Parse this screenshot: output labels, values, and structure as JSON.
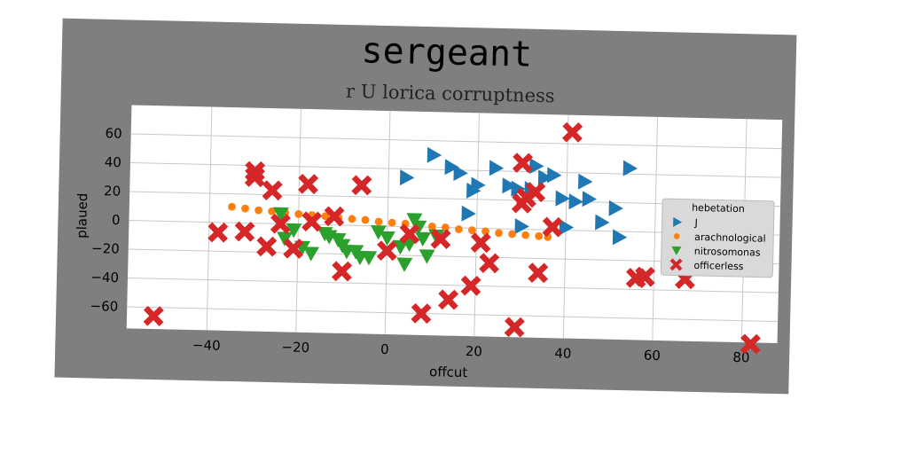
{
  "chart_data": {
    "type": "scatter",
    "title": "sergeant",
    "subtitle": "r U lorica corruptness",
    "xlabel": "offcut",
    "ylabel": "plaued",
    "xlim": [
      -58,
      88
    ],
    "ylim": [
      -75,
      80
    ],
    "xticks": [
      "−40",
      "−20",
      "0",
      "20",
      "40",
      "60",
      "80"
    ],
    "yticks": [
      "−60",
      "−40",
      "−20",
      "0",
      "20",
      "40",
      "60"
    ],
    "grid": true,
    "legend": {
      "title": "hebetation",
      "placement": "right"
    },
    "colors": {
      "figure_bg": "#7f7f7f",
      "plot_bg": "#ffffff",
      "grid": "#c8c8c8"
    },
    "series": [
      {
        "name": "J",
        "marker": "triangle-right",
        "color": "#1f77b4",
        "points": [
          [
            4,
            34
          ],
          [
            10,
            50
          ],
          [
            14,
            42
          ],
          [
            16,
            38
          ],
          [
            18,
            10
          ],
          [
            19,
            26
          ],
          [
            24,
            42
          ],
          [
            27,
            30
          ],
          [
            29,
            28
          ],
          [
            30,
            2
          ],
          [
            33,
            44
          ],
          [
            35,
            36
          ],
          [
            37,
            38
          ],
          [
            39,
            22
          ],
          [
            40,
            2
          ],
          [
            42,
            20
          ],
          [
            44,
            34
          ],
          [
            45,
            22
          ],
          [
            48,
            6
          ],
          [
            51,
            16
          ],
          [
            52,
            -4
          ],
          [
            54,
            44
          ],
          [
            20,
            30
          ],
          [
            32,
            28
          ]
        ]
      },
      {
        "name": "arachnological",
        "marker": "circle",
        "color": "#ff7f0e",
        "points": [
          [
            -35,
            11
          ],
          [
            -32,
            10
          ],
          [
            -29,
            9
          ],
          [
            -26,
            8.5
          ],
          [
            -23,
            8
          ],
          [
            -20,
            7
          ],
          [
            -17,
            6.5
          ],
          [
            -14,
            6
          ],
          [
            -11,
            5
          ],
          [
            -8,
            4.5
          ],
          [
            -5,
            4
          ],
          [
            -2,
            3
          ],
          [
            1,
            2.5
          ],
          [
            4,
            2
          ],
          [
            7,
            1
          ],
          [
            10,
            0.5
          ],
          [
            13,
            0
          ],
          [
            16,
            -1
          ],
          [
            19,
            -1.5
          ],
          [
            22,
            -2
          ],
          [
            25,
            -3
          ],
          [
            28,
            -3.5
          ],
          [
            31,
            -4
          ],
          [
            34,
            -4.5
          ],
          [
            36,
            -5
          ]
        ]
      },
      {
        "name": "nitrosomonas",
        "marker": "triangle-down",
        "color": "#2ca02c",
        "points": [
          [
            -24,
            7
          ],
          [
            -23,
            -10
          ],
          [
            -21,
            -4
          ],
          [
            -19,
            -16
          ],
          [
            -17,
            -20
          ],
          [
            -14,
            -6
          ],
          [
            -13,
            -8
          ],
          [
            -11,
            -10
          ],
          [
            -10,
            -14
          ],
          [
            -9,
            -18
          ],
          [
            -7,
            -18
          ],
          [
            -6,
            -22
          ],
          [
            -4,
            -22
          ],
          [
            -2,
            -4
          ],
          [
            0,
            -8
          ],
          [
            3,
            -14
          ],
          [
            4,
            -26
          ],
          [
            5,
            -12
          ],
          [
            6,
            5
          ],
          [
            7,
            0
          ],
          [
            8,
            -8
          ],
          [
            9,
            -20
          ],
          [
            11,
            -6
          ]
        ]
      },
      {
        "name": "officerless",
        "marker": "x",
        "color": "#d62728",
        "points": [
          [
            -52,
            -66
          ],
          [
            -38,
            -7
          ],
          [
            -32,
            -6
          ],
          [
            -30,
            36
          ],
          [
            -30,
            32
          ],
          [
            -27,
            -16
          ],
          [
            -26,
            23
          ],
          [
            -24,
            0
          ],
          [
            -21,
            -17
          ],
          [
            -18,
            28
          ],
          [
            -17,
            2
          ],
          [
            -12,
            6
          ],
          [
            -10,
            -32
          ],
          [
            -6,
            28
          ],
          [
            0,
            -17
          ],
          [
            5,
            -5
          ],
          [
            8,
            -60
          ],
          [
            12,
            -8
          ],
          [
            14,
            -50
          ],
          [
            19,
            -40
          ],
          [
            21,
            -10
          ],
          [
            23,
            -24
          ],
          [
            29,
            -68
          ],
          [
            30,
            46
          ],
          [
            30,
            18
          ],
          [
            31,
            22
          ],
          [
            33,
            26
          ],
          [
            34,
            -30
          ],
          [
            37,
            2
          ],
          [
            41,
            68
          ],
          [
            56,
            -32
          ],
          [
            58,
            -31
          ],
          [
            67,
            -32
          ],
          [
            82,
            -76
          ]
        ]
      }
    ]
  }
}
